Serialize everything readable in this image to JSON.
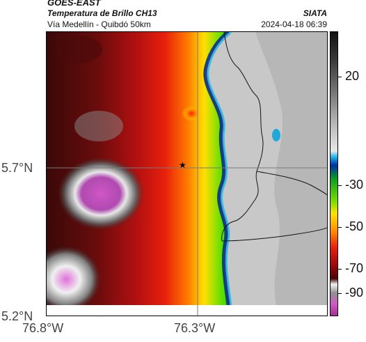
{
  "header": {
    "satellite": "GOES-EAST",
    "product": "Temperatura de Brillo CH13",
    "region": "Vía Medellín - Quibdó 50km",
    "source": "SIATA",
    "datetime": "2024-04-18 06:39"
  },
  "axes": {
    "lat_ticks": [
      "5.7°N",
      "5.2°N"
    ],
    "lon_ticks": [
      "76.8°W",
      "76.3°W"
    ]
  },
  "colorbar": {
    "labels": [
      "20",
      "-30",
      "-50",
      "-70",
      "-90"
    ]
  },
  "marker": {
    "symbol": "★"
  },
  "colors": {
    "land_gray": "#cfcfcf",
    "cold_magenta": "#cc4fc0",
    "warm_dark": "#3d0a0a",
    "gridline": "#7a7a7a"
  }
}
